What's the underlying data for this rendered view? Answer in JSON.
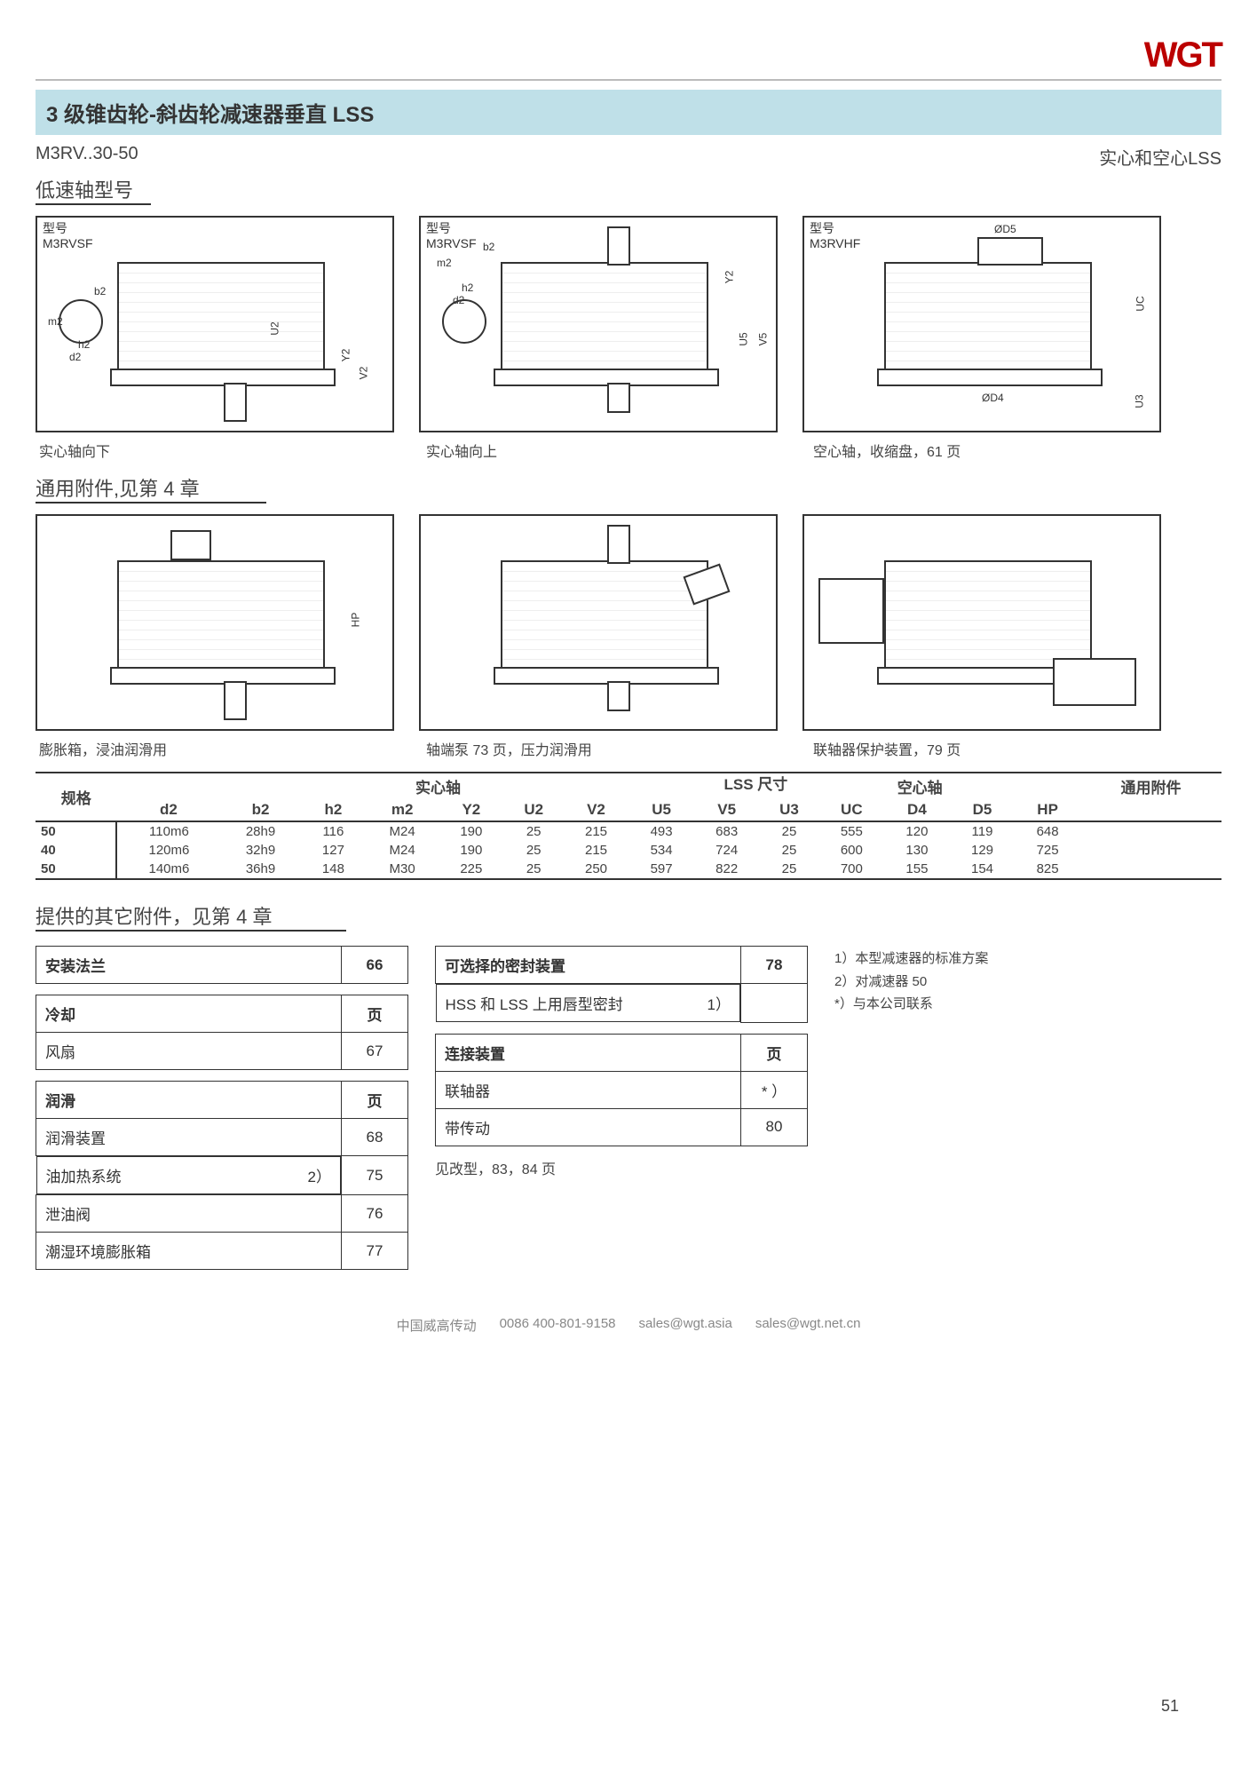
{
  "logo": "WGT",
  "page_title": "3 级锥齿轮-斜齿轮减速器垂直 LSS",
  "model_code": "M3RV..30-50",
  "right_note": "实心和空心LSS",
  "section1": "低速轴型号",
  "section2": "通用附件,见第 4 章",
  "section3": "提供的其它附件，见第 4 章",
  "diagrams_row1": [
    {
      "type_label": "型号",
      "type_code": "M3RVSF",
      "caption": "实心轴向下",
      "annot": [
        "b2",
        "m2",
        "h2",
        "d2",
        "U2",
        "Y2",
        "V2"
      ]
    },
    {
      "type_label": "型号",
      "type_code": "M3RVSF",
      "caption": "实心轴向上",
      "annot": [
        "b2",
        "m2",
        "h2",
        "d2",
        "U5",
        "Y2",
        "V5"
      ]
    },
    {
      "type_label": "型号",
      "type_code": "M3RVHF",
      "caption": "空心轴，收缩盘，61 页",
      "annot": [
        "ØD5",
        "UC",
        "ØD4",
        "U3"
      ]
    }
  ],
  "diagrams_row2": [
    {
      "caption": "膨胀箱，浸油润滑用",
      "annot": [
        "HP"
      ]
    },
    {
      "caption": "轴端泵 73 页，压力润滑用",
      "annot": []
    },
    {
      "caption": "联轴器保护装置，79 页",
      "annot": []
    }
  ],
  "lss_table": {
    "super_header": "LSS 尺寸",
    "group_headers": [
      "规格",
      "实心轴",
      "空心轴",
      "通用附件"
    ],
    "columns": [
      "",
      "d2",
      "b2",
      "h2",
      "m2",
      "Y2",
      "U2",
      "V2",
      "U5",
      "V5",
      "U3",
      "UC",
      "D4",
      "D5",
      "HP"
    ],
    "rows": [
      [
        "50",
        "110m6",
        "28h9",
        "116",
        "M24",
        "190",
        "25",
        "215",
        "493",
        "683",
        "25",
        "555",
        "120",
        "119",
        "648"
      ],
      [
        "40",
        "120m6",
        "32h9",
        "127",
        "M24",
        "190",
        "25",
        "215",
        "534",
        "724",
        "25",
        "600",
        "130",
        "129",
        "725"
      ],
      [
        "50",
        "140m6",
        "36h9",
        "148",
        "M30",
        "225",
        "25",
        "250",
        "597",
        "822",
        "25",
        "700",
        "155",
        "154",
        "825"
      ]
    ]
  },
  "info_left": [
    {
      "head": "安装法兰",
      "page": "66",
      "rows": []
    },
    {
      "head": "冷却",
      "page": "页",
      "rows": [
        {
          "label": "风扇",
          "note": "",
          "page": "67"
        }
      ]
    },
    {
      "head": "润滑",
      "page": "页",
      "rows": [
        {
          "label": "润滑装置",
          "note": "",
          "page": "68"
        },
        {
          "label": "油加热系统",
          "note": "2）",
          "page": "75"
        },
        {
          "label": "泄油阀",
          "note": "",
          "page": "76"
        },
        {
          "label": "潮湿环境膨胀箱",
          "note": "",
          "page": "77"
        }
      ]
    }
  ],
  "info_mid": [
    {
      "head": "可选择的密封装置",
      "page": "78",
      "rows": [
        {
          "label": "HSS 和 LSS 上用唇型密封",
          "note": "1）",
          "page": ""
        }
      ]
    },
    {
      "head": "连接装置",
      "page": "页",
      "rows": [
        {
          "label": "联轴器",
          "note": "",
          "page": "* ）"
        },
        {
          "label": "带传动",
          "note": "",
          "page": "80"
        }
      ]
    }
  ],
  "mid_tail": "见改型，83，84 页",
  "right_notes": [
    "1）本型减速器的标准方案",
    "2）对减速器 50",
    "*）与本公司联系"
  ],
  "footer": {
    "company": "中国威高传动",
    "phone": "0086  400-801-9158",
    "email1": "sales@wgt.asia",
    "email2": "sales@wgt.net.cn",
    "page": "51"
  },
  "colors": {
    "title_bg": "#bfe0e8",
    "text": "#333333",
    "muted": "#888888",
    "logo": "#b00000",
    "rule": "#333333"
  }
}
